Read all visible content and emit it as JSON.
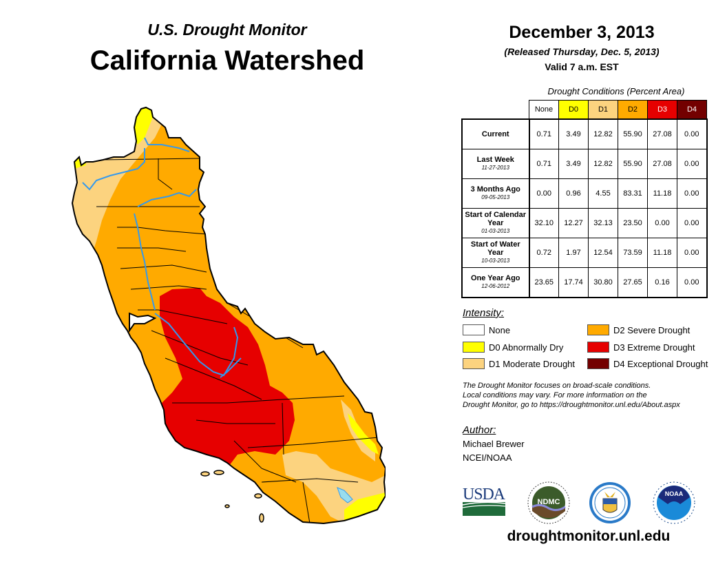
{
  "header": {
    "subtitle": "U.S. Drought Monitor",
    "title": "California Watershed",
    "date": "December 3, 2013",
    "released": "(Released Thursday, Dec. 5, 2013)",
    "valid": "Valid 7 a.m. EST"
  },
  "table": {
    "caption": "Drought Conditions (Percent Area)",
    "columns": [
      {
        "label": "None",
        "color": "#ffffff",
        "text_color": "#000000"
      },
      {
        "label": "D0",
        "color": "#ffff00",
        "text_color": "#000000"
      },
      {
        "label": "D1",
        "color": "#fcd37f",
        "text_color": "#000000"
      },
      {
        "label": "D2",
        "color": "#ffaa00",
        "text_color": "#000000"
      },
      {
        "label": "D3",
        "color": "#e60000",
        "text_color": "#ffffff"
      },
      {
        "label": "D4",
        "color": "#730000",
        "text_color": "#ffffff"
      }
    ],
    "rows": [
      {
        "label": "Current",
        "date": "",
        "values": [
          "0.71",
          "3.49",
          "12.82",
          "55.90",
          "27.08",
          "0.00"
        ]
      },
      {
        "label": "Last Week",
        "date": "11-27-2013",
        "values": [
          "0.71",
          "3.49",
          "12.82",
          "55.90",
          "27.08",
          "0.00"
        ]
      },
      {
        "label": "3 Months Ago",
        "date": "09-05-2013",
        "values": [
          "0.00",
          "0.96",
          "4.55",
          "83.31",
          "11.18",
          "0.00"
        ]
      },
      {
        "label": "Start of Calendar Year",
        "date": "01-03-2013",
        "values": [
          "32.10",
          "12.27",
          "32.13",
          "23.50",
          "0.00",
          "0.00"
        ]
      },
      {
        "label": "Start of Water Year",
        "date": "10-03-2013",
        "values": [
          "0.72",
          "1.97",
          "12.54",
          "73.59",
          "11.18",
          "0.00"
        ]
      },
      {
        "label": "One Year Ago",
        "date": "12-06-2012",
        "values": [
          "23.65",
          "17.74",
          "30.80",
          "27.65",
          "0.16",
          "0.00"
        ]
      }
    ]
  },
  "legend": {
    "title": "Intensity:",
    "items": [
      {
        "label": "None",
        "color": "#ffffff"
      },
      {
        "label": "D0 Abnormally Dry",
        "color": "#ffff00"
      },
      {
        "label": "D1 Moderate Drought",
        "color": "#fcd37f"
      },
      {
        "label": "D2 Severe Drought",
        "color": "#ffaa00"
      },
      {
        "label": "D3 Extreme Drought",
        "color": "#e60000"
      },
      {
        "label": "D4 Exceptional Drought",
        "color": "#730000"
      }
    ]
  },
  "note": {
    "line1": "The Drought Monitor focuses on broad-scale conditions.",
    "line2": "Local conditions may vary. For more information on the",
    "line3": "Drought Monitor, go to https://droughtmonitor.unl.edu/About.aspx"
  },
  "author": {
    "label": "Author:",
    "name": "Michael Brewer",
    "org": "NCEI/NOAA"
  },
  "logos": {
    "usda": "USDA",
    "ndmc": "NDMC",
    "noaa": "NOAA"
  },
  "website": "droughtmonitor.unl.edu",
  "colors": {
    "river": "#3399ee",
    "lake": "#99ddee"
  }
}
